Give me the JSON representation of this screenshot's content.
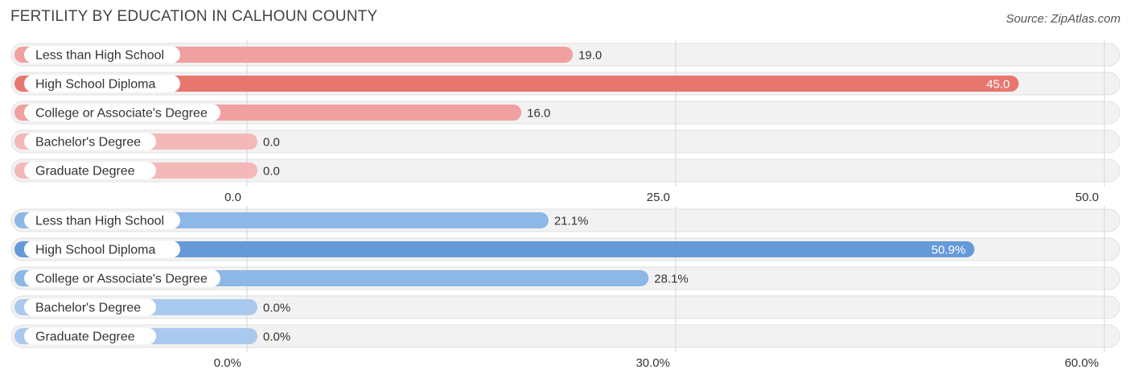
{
  "title": "FERTILITY BY EDUCATION IN CALHOUN COUNTY",
  "source": "Source: ZipAtlas.com",
  "chart_data": [
    {
      "type": "bar",
      "orientation": "horizontal",
      "categories": [
        "Less than High School",
        "High School Diploma",
        "College or Associate's Degree",
        "Bachelor's Degree",
        "Graduate Degree"
      ],
      "values": [
        19.0,
        45.0,
        16.0,
        0.0,
        0.0
      ],
      "value_labels": [
        "19.0",
        "45.0",
        "16.0",
        "0.0",
        "0.0"
      ],
      "xlim": [
        0,
        50
      ],
      "ticks": [
        "0.0",
        "25.0",
        "50.0"
      ],
      "colors": [
        "#f0a0a0",
        "#e8766f",
        "#f0a0a0",
        "#f4b8b8",
        "#f4b8b8"
      ],
      "grid": true
    },
    {
      "type": "bar",
      "orientation": "horizontal",
      "categories": [
        "Less than High School",
        "High School Diploma",
        "College or Associate's Degree",
        "Bachelor's Degree",
        "Graduate Degree"
      ],
      "values": [
        21.1,
        50.9,
        28.1,
        0.0,
        0.0
      ],
      "value_labels": [
        "21.1%",
        "50.9%",
        "28.1%",
        "0.0%",
        "0.0%"
      ],
      "xlim": [
        0,
        60
      ],
      "ticks": [
        "0.0%",
        "30.0%",
        "60.0%"
      ],
      "colors": [
        "#8db7e6",
        "#6699d8",
        "#8db7e6",
        "#aac9ee",
        "#aac9ee"
      ],
      "grid": true
    }
  ]
}
